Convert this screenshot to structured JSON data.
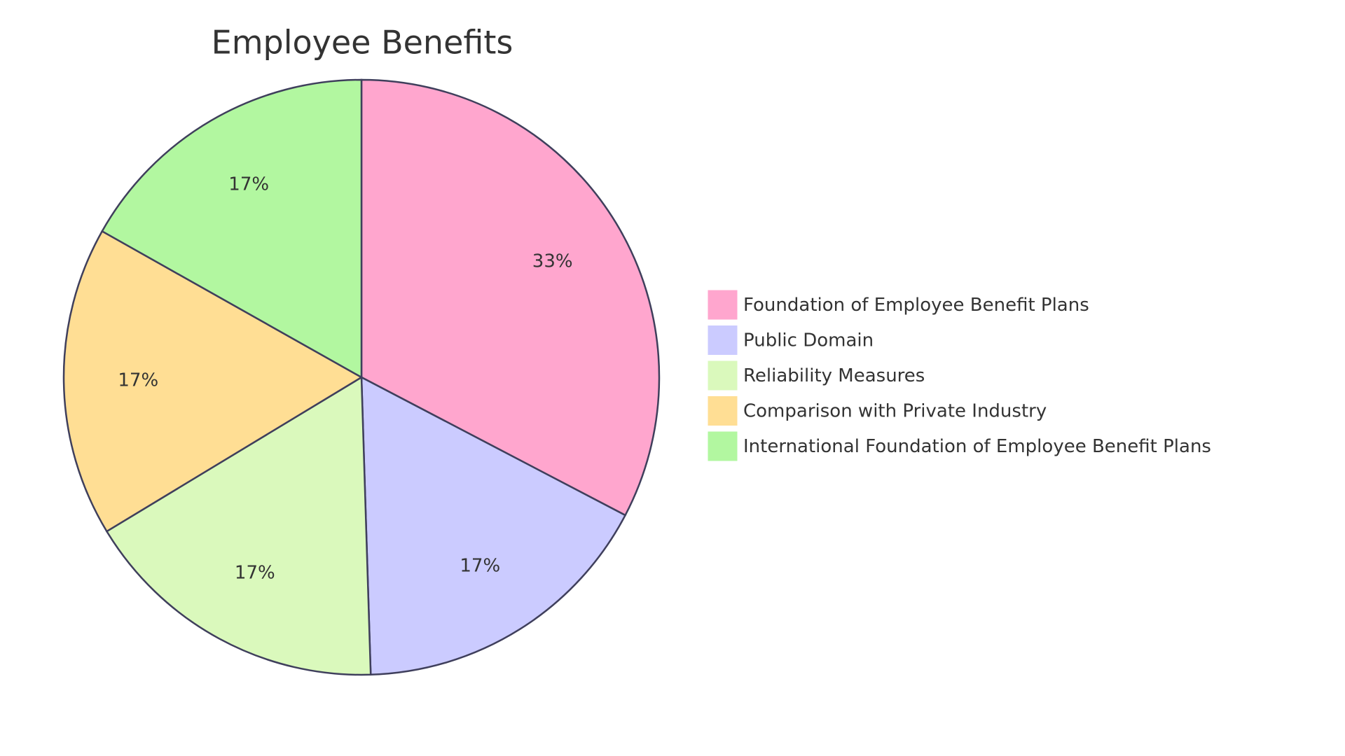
{
  "chart_data": {
    "type": "pie",
    "title": "Employee Benefits",
    "categories": [
      "Foundation of Employee Benefit Plans",
      "Public Domain",
      "Reliability Measures",
      "Comparison with Private Industry",
      "International Foundation of Employee Benefit Plans"
    ],
    "values": [
      33,
      17,
      17,
      17,
      17
    ],
    "value_labels": [
      "33%",
      "17%",
      "17%",
      "17%",
      "17%"
    ],
    "colors": [
      "#ffa6ce",
      "#cbcbff",
      "#daf9bc",
      "#ffde94",
      "#b2f7a0"
    ],
    "legend": "right"
  }
}
